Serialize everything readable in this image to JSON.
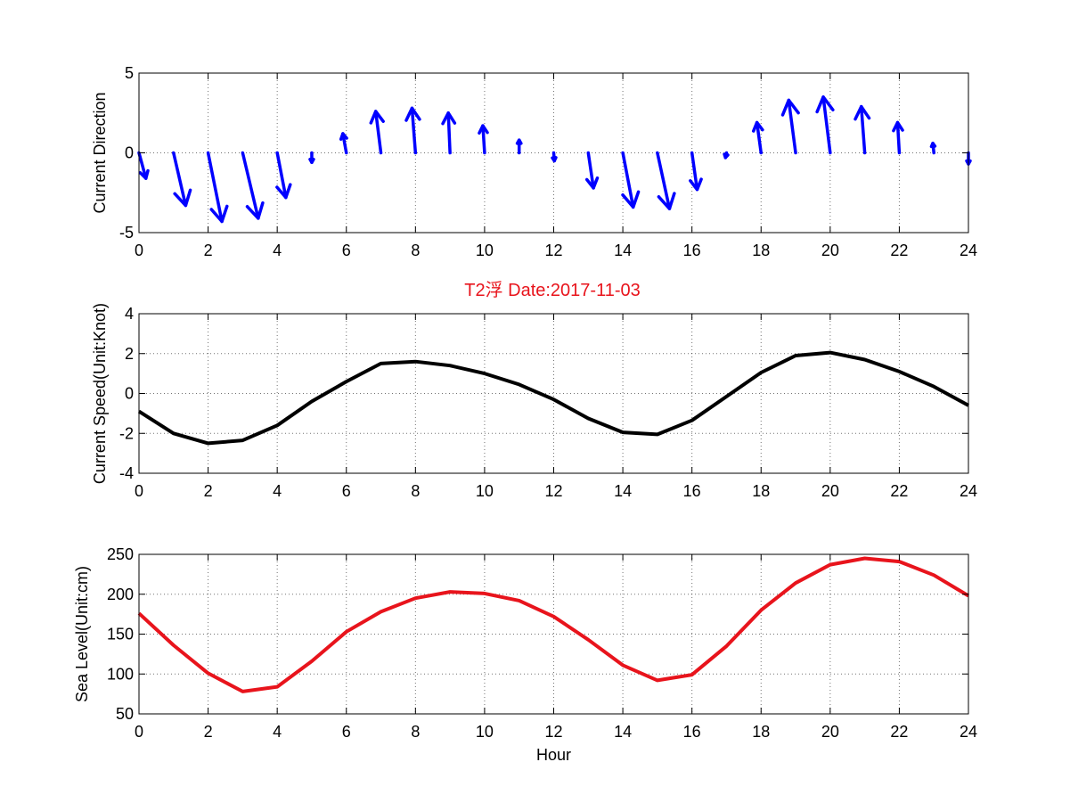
{
  "figure": {
    "title": "T2浮    Date:2017-11-03",
    "title_color": "#e8141c"
  },
  "chart_data": [
    {
      "type": "quiver",
      "name": "current-direction",
      "xlabel": "",
      "ylabel": "Current Direction",
      "xlim": [
        0,
        24
      ],
      "ylim": [
        -5,
        5
      ],
      "xticks": [
        0,
        2,
        4,
        6,
        8,
        10,
        12,
        14,
        16,
        18,
        20,
        22,
        24
      ],
      "yticks": [
        -5,
        0,
        5
      ],
      "grid": true,
      "color": "#0000ff",
      "vectors": [
        {
          "x": 0,
          "u": 0.2,
          "v": -1.6
        },
        {
          "x": 1,
          "u": 0.35,
          "v": -3.3
        },
        {
          "x": 2,
          "u": 0.4,
          "v": -4.3
        },
        {
          "x": 3,
          "u": 0.45,
          "v": -4.1
        },
        {
          "x": 4,
          "u": 0.25,
          "v": -2.8
        },
        {
          "x": 5,
          "u": 0.0,
          "v": -0.6
        },
        {
          "x": 6,
          "u": -0.1,
          "v": 1.2
        },
        {
          "x": 7,
          "u": -0.15,
          "v": 2.6
        },
        {
          "x": 8,
          "u": -0.1,
          "v": 2.8
        },
        {
          "x": 9,
          "u": -0.05,
          "v": 2.5
        },
        {
          "x": 10,
          "u": -0.05,
          "v": 1.7
        },
        {
          "x": 11,
          "u": 0.0,
          "v": 0.8
        },
        {
          "x": 12,
          "u": 0.02,
          "v": -0.5
        },
        {
          "x": 13,
          "u": 0.15,
          "v": -2.2
        },
        {
          "x": 14,
          "u": 0.3,
          "v": -3.4
        },
        {
          "x": 15,
          "u": 0.35,
          "v": -3.5
        },
        {
          "x": 16,
          "u": 0.15,
          "v": -2.3
        },
        {
          "x": 17,
          "u": -0.03,
          "v": -0.3
        },
        {
          "x": 18,
          "u": -0.12,
          "v": 1.9
        },
        {
          "x": 19,
          "u": -0.2,
          "v": 3.3
        },
        {
          "x": 20,
          "u": -0.2,
          "v": 3.5
        },
        {
          "x": 21,
          "u": -0.1,
          "v": 2.9
        },
        {
          "x": 22,
          "u": -0.05,
          "v": 1.9
        },
        {
          "x": 23,
          "u": -0.03,
          "v": 0.6
        },
        {
          "x": 24,
          "u": 0.0,
          "v": -0.7
        }
      ]
    },
    {
      "type": "line",
      "name": "current-speed",
      "xlabel": "",
      "ylabel": "Current Speed(Unit:Knot)",
      "xlim": [
        0,
        24
      ],
      "ylim": [
        -4,
        4
      ],
      "xticks": [
        0,
        2,
        4,
        6,
        8,
        10,
        12,
        14,
        16,
        18,
        20,
        22,
        24
      ],
      "yticks": [
        -4,
        -2,
        0,
        2,
        4
      ],
      "grid": true,
      "color": "#000000",
      "x": [
        0,
        1,
        2,
        3,
        4,
        5,
        6,
        7,
        8,
        9,
        10,
        11,
        12,
        13,
        14,
        15,
        16,
        17,
        18,
        19,
        20,
        21,
        22,
        23,
        24
      ],
      "y": [
        -0.9,
        -2.0,
        -2.5,
        -2.35,
        -1.6,
        -0.4,
        0.6,
        1.5,
        1.6,
        1.4,
        1.0,
        0.45,
        -0.3,
        -1.25,
        -1.95,
        -2.05,
        -1.35,
        -0.15,
        1.05,
        1.9,
        2.05,
        1.7,
        1.1,
        0.35,
        -0.6
      ]
    },
    {
      "type": "line",
      "name": "sea-level",
      "xlabel": "Hour",
      "ylabel": "Sea Level(Unit:cm)",
      "xlim": [
        0,
        24
      ],
      "ylim": [
        50,
        250
      ],
      "xticks": [
        0,
        2,
        4,
        6,
        8,
        10,
        12,
        14,
        16,
        18,
        20,
        22,
        24
      ],
      "yticks": [
        50,
        100,
        150,
        200,
        250
      ],
      "grid": true,
      "color": "#e8141c",
      "x": [
        0,
        1,
        2,
        3,
        4,
        5,
        6,
        7,
        8,
        9,
        10,
        11,
        12,
        13,
        14,
        15,
        16,
        17,
        18,
        19,
        20,
        21,
        22,
        23,
        24
      ],
      "y": [
        176,
        136,
        101,
        78,
        84,
        116,
        153,
        178,
        195,
        203,
        201,
        192,
        172,
        143,
        111,
        92,
        99,
        135,
        180,
        214,
        237,
        245,
        241,
        224,
        198
      ]
    }
  ]
}
